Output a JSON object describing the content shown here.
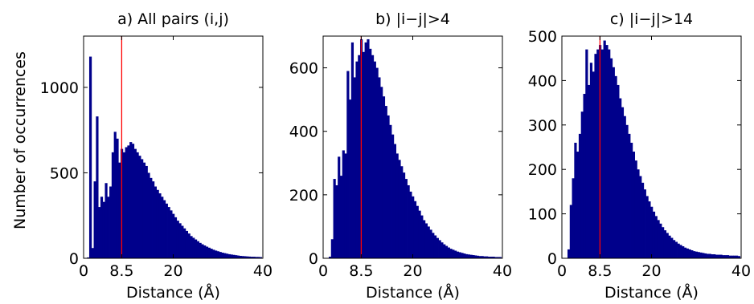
{
  "figure": {
    "ylabel": "Number of occurrences",
    "xlabel": "Distance (Å)"
  },
  "colors": {
    "bars": "#00008B",
    "threshold": "#FF0000",
    "axis": "#000000"
  },
  "chart_data": [
    {
      "type": "bar",
      "title": "a) All pairs (i,j)",
      "xlabel": "Distance (Å)",
      "ylabel": "Number of occurrences",
      "xlim": [
        0,
        40
      ],
      "ylim": [
        0,
        1300
      ],
      "xticks": [
        "0",
        "8.5",
        "20",
        "40"
      ],
      "yticks": [
        "0",
        "500",
        "1000"
      ],
      "threshold": 8.5,
      "bin_width": 0.5,
      "x": [
        0.5,
        1.0,
        1.5,
        2.0,
        2.5,
        3.0,
        3.5,
        4.0,
        4.5,
        5.0,
        5.5,
        6.0,
        6.5,
        7.0,
        7.5,
        8.0,
        8.5,
        9.0,
        9.5,
        10.0,
        10.5,
        11.0,
        11.5,
        12.0,
        12.5,
        13.0,
        13.5,
        14.0,
        14.5,
        15.0,
        15.5,
        16.0,
        16.5,
        17.0,
        17.5,
        18.0,
        18.5,
        19.0,
        19.5,
        20.0,
        20.5,
        21.0,
        21.5,
        22.0,
        22.5,
        23.0,
        23.5,
        24.0,
        24.5,
        25.0,
        25.5,
        26.0,
        26.5,
        27.0,
        27.5,
        28.0,
        28.5,
        29.0,
        29.5,
        30.0,
        30.5,
        31.0,
        31.5,
        32.0,
        32.5,
        33.0,
        33.5,
        34.0,
        34.5,
        35.0,
        35.5,
        36.0,
        36.5,
        37.0,
        37.5,
        38.0,
        38.5,
        39.0,
        39.5
      ],
      "values": [
        0,
        5,
        1180,
        60,
        450,
        830,
        300,
        360,
        330,
        440,
        360,
        420,
        620,
        740,
        700,
        560,
        640,
        620,
        650,
        660,
        680,
        670,
        640,
        620,
        600,
        580,
        560,
        540,
        500,
        470,
        450,
        420,
        400,
        380,
        360,
        340,
        320,
        300,
        280,
        260,
        240,
        220,
        205,
        190,
        175,
        160,
        145,
        130,
        120,
        110,
        100,
        90,
        82,
        75,
        68,
        62,
        56,
        50,
        45,
        41,
        37,
        33,
        30,
        27,
        24,
        22,
        20,
        18,
        16,
        14,
        13,
        12,
        11,
        10,
        9,
        9,
        8,
        8,
        7
      ]
    },
    {
      "type": "bar",
      "title": "b) |i−j|>4",
      "xlabel": "Distance (Å)",
      "ylabel": "",
      "xlim": [
        0,
        40
      ],
      "ylim": [
        0,
        700
      ],
      "xticks": [
        "0",
        "8.5",
        "20",
        "40"
      ],
      "yticks": [
        "0",
        "200",
        "400",
        "600"
      ],
      "threshold": 8.5,
      "bin_width": 0.5,
      "x": [
        0.5,
        1.0,
        1.5,
        2.0,
        2.5,
        3.0,
        3.5,
        4.0,
        4.5,
        5.0,
        5.5,
        6.0,
        6.5,
        7.0,
        7.5,
        8.0,
        8.5,
        9.0,
        9.5,
        10.0,
        10.5,
        11.0,
        11.5,
        12.0,
        12.5,
        13.0,
        13.5,
        14.0,
        14.5,
        15.0,
        15.5,
        16.0,
        16.5,
        17.0,
        17.5,
        18.0,
        18.5,
        19.0,
        19.5,
        20.0,
        20.5,
        21.0,
        21.5,
        22.0,
        22.5,
        23.0,
        23.5,
        24.0,
        24.5,
        25.0,
        25.5,
        26.0,
        26.5,
        27.0,
        27.5,
        28.0,
        28.5,
        29.0,
        29.5,
        30.0,
        30.5,
        31.0,
        31.5,
        32.0,
        32.5,
        33.0,
        33.5,
        34.0,
        34.5,
        35.0,
        35.5,
        36.0,
        36.5,
        37.0,
        37.5,
        38.0,
        38.5,
        39.0,
        39.5
      ],
      "values": [
        0,
        0,
        5,
        60,
        250,
        230,
        320,
        260,
        340,
        330,
        590,
        500,
        680,
        570,
        620,
        640,
        690,
        650,
        680,
        690,
        660,
        640,
        620,
        600,
        570,
        540,
        510,
        480,
        450,
        420,
        390,
        360,
        330,
        310,
        290,
        270,
        250,
        230,
        210,
        195,
        180,
        165,
        150,
        135,
        120,
        110,
        100,
        90,
        80,
        72,
        64,
        57,
        50,
        44,
        39,
        34,
        30,
        27,
        24,
        21,
        19,
        17,
        15,
        13,
        12,
        11,
        10,
        9,
        8,
        7,
        7,
        6,
        6,
        5,
        5,
        5,
        4,
        4,
        4
      ]
    },
    {
      "type": "bar",
      "title": "c) |i−j|>14",
      "xlabel": "Distance (Å)",
      "ylabel": "",
      "xlim": [
        0,
        40
      ],
      "ylim": [
        0,
        500
      ],
      "xticks": [
        "0",
        "8.5",
        "20",
        "40"
      ],
      "yticks": [
        "0",
        "100",
        "200",
        "300",
        "400",
        "500"
      ],
      "threshold": 8.5,
      "bin_width": 0.5,
      "x": [
        0.5,
        1.0,
        1.5,
        2.0,
        2.5,
        3.0,
        3.5,
        4.0,
        4.5,
        5.0,
        5.5,
        6.0,
        6.5,
        7.0,
        7.5,
        8.0,
        8.5,
        9.0,
        9.5,
        10.0,
        10.5,
        11.0,
        11.5,
        12.0,
        12.5,
        13.0,
        13.5,
        14.0,
        14.5,
        15.0,
        15.5,
        16.0,
        16.5,
        17.0,
        17.5,
        18.0,
        18.5,
        19.0,
        19.5,
        20.0,
        20.5,
        21.0,
        21.5,
        22.0,
        22.5,
        23.0,
        23.5,
        24.0,
        24.5,
        25.0,
        25.5,
        26.0,
        26.5,
        27.0,
        27.5,
        28.0,
        28.5,
        29.0,
        29.5,
        30.0,
        30.5,
        31.0,
        31.5,
        32.0,
        32.5,
        33.0,
        33.5,
        34.0,
        34.5,
        35.0,
        35.5,
        36.0,
        36.5,
        37.0,
        37.5,
        38.0,
        38.5,
        39.0,
        39.5
      ],
      "values": [
        0,
        0,
        20,
        120,
        180,
        260,
        240,
        280,
        330,
        370,
        470,
        390,
        440,
        420,
        460,
        470,
        480,
        470,
        490,
        480,
        470,
        450,
        430,
        410,
        390,
        360,
        340,
        320,
        300,
        280,
        260,
        240,
        220,
        200,
        185,
        170,
        155,
        140,
        128,
        116,
        105,
        95,
        86,
        78,
        70,
        63,
        57,
        51,
        46,
        41,
        37,
        33,
        30,
        27,
        24,
        22,
        20,
        18,
        16,
        15,
        14,
        13,
        12,
        11,
        10,
        10,
        9,
        9,
        8,
        8,
        8,
        7,
        7,
        7,
        6,
        6,
        6,
        6,
        5
      ]
    }
  ]
}
